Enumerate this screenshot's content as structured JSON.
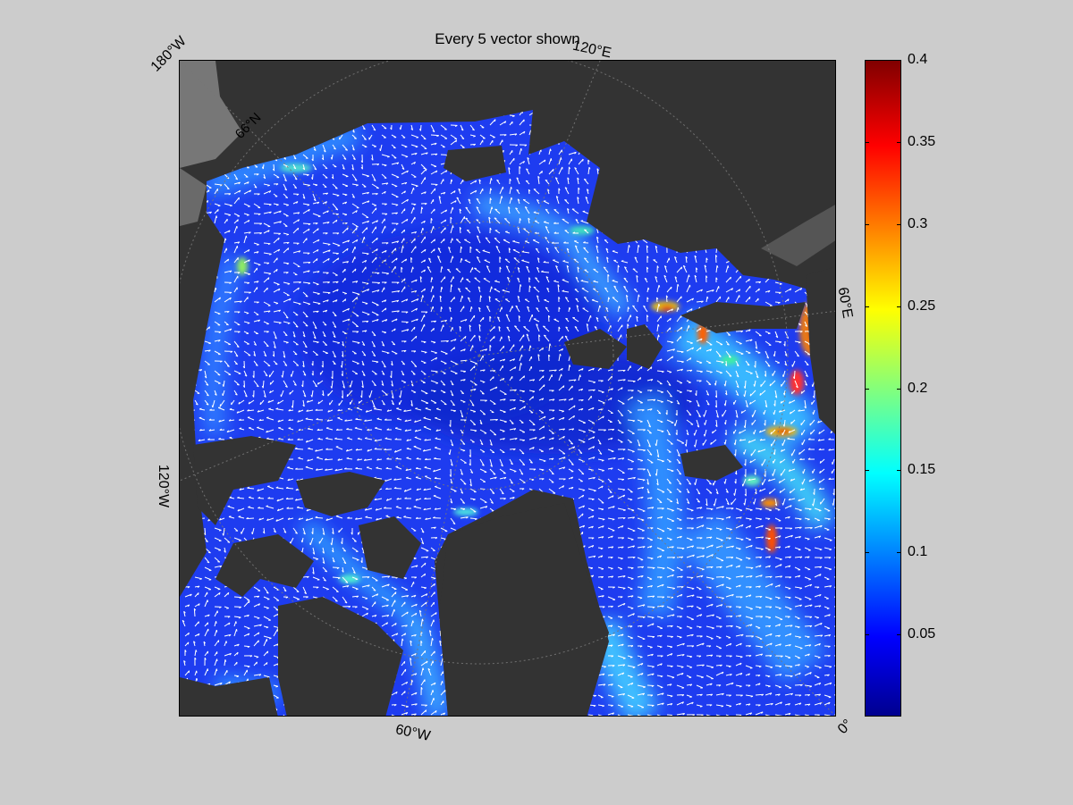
{
  "figure": {
    "title": "Every 5 vector shown",
    "map_labels": {
      "lon_180w": "180°W",
      "lon_120e": "120°E",
      "lon_60e": "60°E",
      "lon_120w": "120°W",
      "lon_60w": "60°W",
      "lon_0": "0°",
      "lat_66n": "66°N"
    },
    "colors": {
      "background": "#cccccc",
      "land": "#333333",
      "land_shelf": "#777777",
      "vector": "#ffffff",
      "ocean_base": "#1e3cf0"
    },
    "colorbar": {
      "colormap": "jet",
      "min": 0,
      "max": 0.4,
      "ticks": [
        "0.05",
        "0.1",
        "0.15",
        "0.2",
        "0.25",
        "0.3",
        "0.35",
        "0.4"
      ]
    }
  }
}
